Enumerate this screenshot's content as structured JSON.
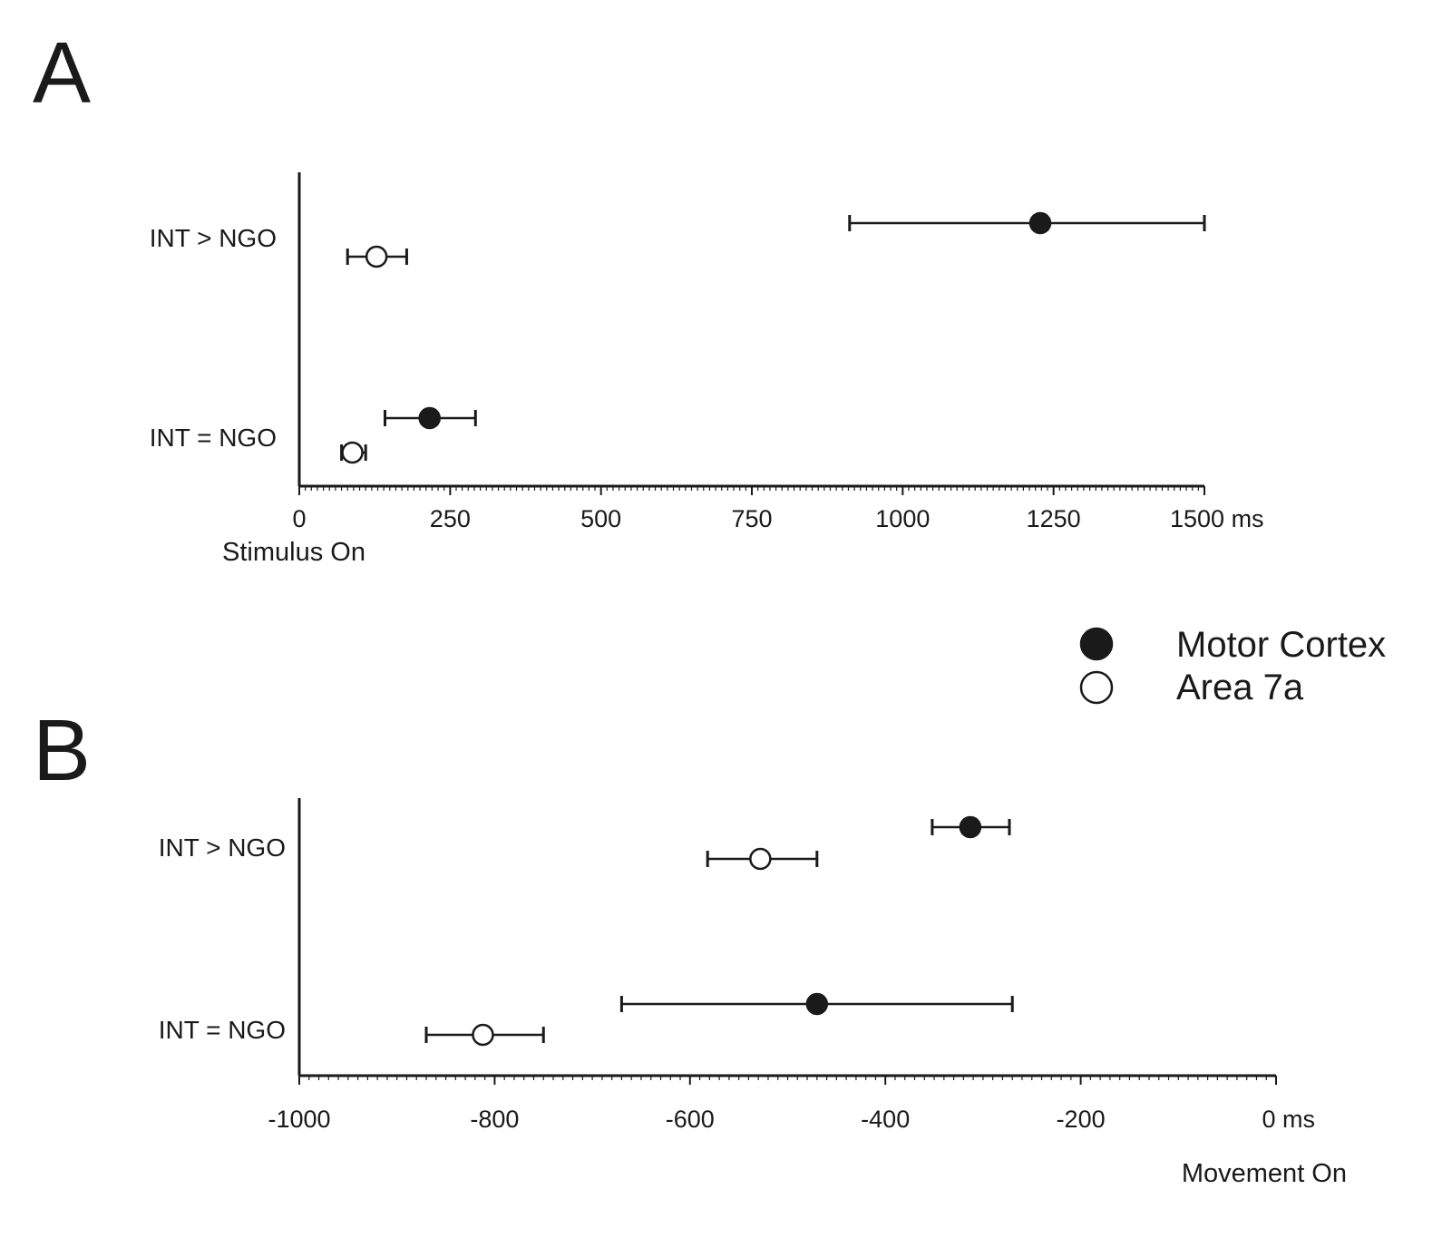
{
  "chart_data": [
    {
      "panel": "A",
      "type": "scatter",
      "categories": [
        "INT > NGO",
        "INT = NGO"
      ],
      "series": [
        {
          "name": "Motor Cortex",
          "marker": "filled",
          "points": [
            {
              "category": "INT > NGO",
              "x": 1228,
              "err_low": 912,
              "err_high": 1500
            },
            {
              "category": "INT = NGO",
              "x": 216,
              "err_low": 142,
              "err_high": 292
            }
          ]
        },
        {
          "name": "Area 7a",
          "marker": "open",
          "points": [
            {
              "category": "INT > NGO",
              "x": 128,
              "err_low": 80,
              "err_high": 178
            },
            {
              "category": "INT = NGO",
              "x": 88,
              "err_low": 70,
              "err_high": 110
            }
          ]
        }
      ],
      "xlim": [
        0,
        1500
      ],
      "xticks": [
        0,
        250,
        500,
        750,
        1000,
        1250,
        1500
      ],
      "xtick_labels": [
        "0",
        "250",
        "500",
        "750",
        "1000",
        "1250",
        "1500 ms"
      ],
      "xlabel": "Stimulus On"
    },
    {
      "panel": "B",
      "type": "scatter",
      "categories": [
        "INT > NGO",
        "INT = NGO"
      ],
      "series": [
        {
          "name": "Motor Cortex",
          "marker": "filled",
          "points": [
            {
              "category": "INT > NGO",
              "x": -313,
              "err_low": -352,
              "err_high": -273
            },
            {
              "category": "INT = NGO",
              "x": -470,
              "err_low": -670,
              "err_high": -270
            }
          ]
        },
        {
          "name": "Area 7a",
          "marker": "open",
          "points": [
            {
              "category": "INT > NGO",
              "x": -528,
              "err_low": -582,
              "err_high": -470
            },
            {
              "category": "INT = NGO",
              "x": -812,
              "err_low": -870,
              "err_high": -750
            }
          ]
        }
      ],
      "xlim": [
        -1000,
        0
      ],
      "xticks": [
        -1000,
        -800,
        -600,
        -400,
        -200,
        0
      ],
      "xtick_labels": [
        "-1000",
        "-800",
        "-600",
        "-400",
        "-200",
        "0 ms"
      ],
      "xlabel": "Movement On"
    }
  ],
  "legend": [
    {
      "label": "Motor Cortex",
      "marker": "filled"
    },
    {
      "label": "Area 7a",
      "marker": "open"
    }
  ],
  "colors": {
    "ink": "#1a1a1a",
    "background": "#ffffff"
  }
}
